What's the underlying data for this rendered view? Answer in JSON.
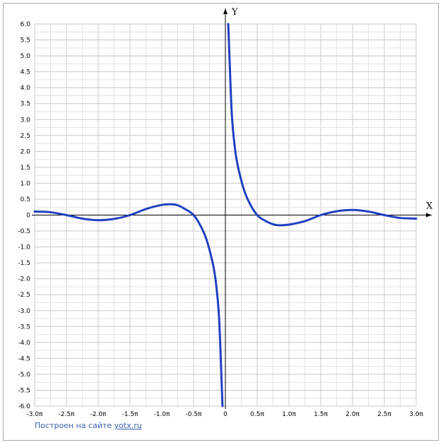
{
  "chart_data": {
    "type": "line",
    "title": "",
    "xlabel": "X",
    "ylabel": "Y",
    "xlim": [
      -3.0,
      3.0
    ],
    "ylim": [
      -6.0,
      6.0
    ],
    "x_unit": "π",
    "grid": true,
    "x_tick_labels": [
      "-3.0π",
      "-2.5π",
      "-2.0π",
      "-1.5π",
      "-1.0π",
      "-0.5π",
      "0",
      "0.5π",
      "1.0π",
      "1.5π",
      "2.0π",
      "2.5π",
      "3.0π"
    ],
    "y_tick_labels": [
      "6.0",
      "5.5",
      "5.0",
      "4.5",
      "4.0",
      "3.5",
      "3.0",
      "2.5",
      "2.0",
      "1.5",
      "1.0",
      "0.5",
      "0",
      "-0.5",
      "-1.0",
      "-1.5",
      "-2.0",
      "-2.5",
      "-3.0",
      "-3.5",
      "-4.0",
      "-4.5",
      "-5.0",
      "-5.5",
      "-6.0"
    ],
    "series": [
      {
        "color": "#2040c0",
        "branches": [
          {
            "x": [
              -3.0,
              -2.75,
              -2.5,
              -2.25,
              -2.0,
              -1.75,
              -1.5,
              -1.25,
              -1.0,
              -0.85,
              -0.75,
              -0.6,
              -0.5,
              -0.4,
              -0.3,
              -0.2,
              -0.15,
              -0.1,
              -0.06,
              -0.045
            ],
            "y": [
              0.11,
              0.09,
              0.0,
              -0.11,
              -0.16,
              -0.12,
              0.0,
              0.19,
              0.32,
              0.34,
              0.31,
              0.15,
              0.0,
              -0.3,
              -0.75,
              -1.5,
              -2.1,
              -3.2,
              -5.2,
              -6.0
            ]
          },
          {
            "x": [
              0.045,
              0.06,
              0.1,
              0.15,
              0.2,
              0.3,
              0.4,
              0.5,
              0.6,
              0.75,
              0.85,
              1.0,
              1.25,
              1.5,
              1.75,
              2.0,
              2.25,
              2.5,
              2.75,
              3.0
            ],
            "y": [
              6.0,
              5.2,
              3.2,
              2.1,
              1.5,
              0.75,
              0.3,
              0.0,
              -0.15,
              -0.29,
              -0.32,
              -0.3,
              -0.19,
              0.0,
              0.12,
              0.16,
              0.11,
              0.0,
              -0.09,
              -0.11
            ]
          }
        ]
      }
    ]
  },
  "footer": {
    "prefix": "Построен на сайте ",
    "link": "yotx.ru"
  }
}
